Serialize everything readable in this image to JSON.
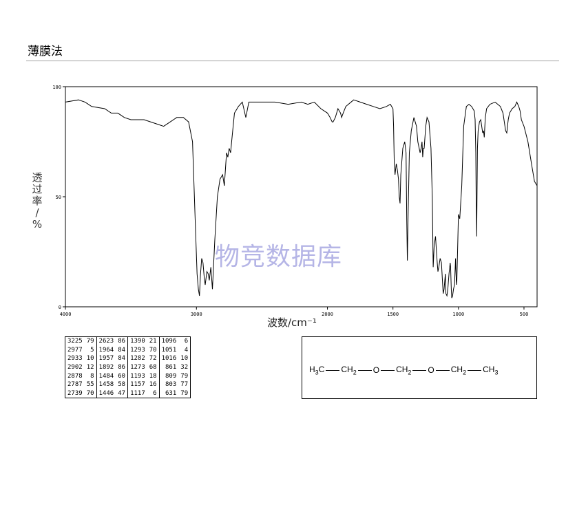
{
  "header": {
    "title": "薄膜法"
  },
  "axis": {
    "ylabel_chars": [
      "透",
      "过",
      "率",
      "/",
      "%"
    ],
    "xlabel": "波数/cm⁻¹"
  },
  "watermark": "物竞数据库",
  "chart_data": {
    "type": "line",
    "title": "",
    "xlabel": "波数/cm-1",
    "ylabel": "透过率/%",
    "xlim": [
      4000,
      400
    ],
    "ylim": [
      0,
      100
    ],
    "x_ticks": [
      4000,
      3000,
      2000,
      1500,
      1000,
      500
    ],
    "y_ticks": [
      0,
      50,
      100
    ],
    "grid": false,
    "series": [
      {
        "x": [
          4000,
          3900,
          3850,
          3800,
          3700,
          3650,
          3600,
          3550,
          3500,
          3400,
          3300,
          3250,
          3200,
          3150,
          3100,
          3060,
          3030,
          3010,
          2995,
          2985,
          2977,
          2970,
          2960,
          2950,
          2940,
          2933,
          2920,
          2910,
          2902,
          2890,
          2878,
          2860,
          2840,
          2820,
          2800,
          2787,
          2770,
          2760,
          2750,
          2739,
          2730,
          2720,
          2710,
          2700,
          2680,
          2650,
          2623,
          2600,
          2500,
          2400,
          2300,
          2200,
          2150,
          2100,
          2050,
          2000,
          1980,
          1964,
          1957,
          1940,
          1920,
          1900,
          1892,
          1880,
          1860,
          1800,
          1750,
          1700,
          1650,
          1600,
          1550,
          1520,
          1500,
          1495,
          1490,
          1484,
          1475,
          1466,
          1458,
          1452,
          1446,
          1440,
          1425,
          1410,
          1400,
          1395,
          1390,
          1385,
          1375,
          1360,
          1340,
          1320,
          1310,
          1300,
          1293,
          1285,
          1278,
          1273,
          1268,
          1262,
          1250,
          1240,
          1225,
          1210,
          1200,
          1193,
          1185,
          1175,
          1168,
          1162,
          1157,
          1150,
          1140,
          1130,
          1117,
          1110,
          1100,
          1096,
          1088,
          1080,
          1072,
          1063,
          1060,
          1058,
          1055,
          1051,
          1045,
          1038,
          1030,
          1022,
          1016,
          1012,
          1005,
          1000,
          990,
          975,
          960,
          940,
          920,
          900,
          890,
          880,
          873,
          868,
          865,
          861,
          858,
          855,
          850,
          840,
          830,
          815,
          809,
          803,
          795,
          785,
          760,
          720,
          700,
          680,
          660,
          650,
          640,
          631,
          620,
          610,
          590,
          570,
          555,
          540,
          530,
          520,
          500,
          470,
          440,
          420,
          400
        ],
        "y": [
          93,
          94,
          93,
          91,
          90,
          88,
          88,
          86,
          85,
          85,
          83,
          82,
          84,
          86,
          86,
          84,
          75,
          40,
          15,
          8,
          5,
          14,
          22,
          20,
          13,
          10,
          16,
          15,
          12,
          18,
          8,
          30,
          50,
          58,
          60,
          55,
          70,
          68,
          72,
          70,
          76,
          82,
          88,
          89,
          91,
          93,
          86,
          93,
          93,
          93,
          92,
          93,
          92,
          93,
          90,
          88,
          86,
          84,
          84,
          86,
          90,
          88,
          86,
          88,
          91,
          94,
          93,
          92,
          91,
          90,
          91,
          92,
          90,
          82,
          65,
          60,
          65,
          62,
          58,
          50,
          47,
          60,
          72,
          75,
          70,
          40,
          21,
          40,
          70,
          80,
          86,
          82,
          75,
          72,
          70,
          72,
          75,
          68,
          72,
          72,
          82,
          86,
          84,
          72,
          50,
          18,
          28,
          32,
          25,
          20,
          16,
          18,
          22,
          20,
          6,
          8,
          15,
          6,
          5,
          9,
          15,
          20,
          18,
          14,
          8,
          4,
          5,
          8,
          10,
          22,
          10,
          12,
          30,
          42,
          40,
          55,
          82,
          91,
          92,
          91,
          90,
          89,
          85,
          70,
          50,
          32,
          55,
          72,
          80,
          84,
          85,
          79,
          80,
          77,
          86,
          90,
          92,
          93,
          92,
          91,
          88,
          84,
          80,
          79,
          85,
          88,
          90,
          91,
          93,
          91,
          89,
          85,
          82,
          75,
          64,
          57,
          55
        ],
        "name": ""
      }
    ]
  },
  "peak_table": {
    "rows": [
      [
        "3225",
        "79",
        "2623",
        "86",
        "1390",
        "21",
        "1096",
        "6"
      ],
      [
        "2977",
        "5",
        "1964",
        "84",
        "1293",
        "70",
        "1051",
        "4"
      ],
      [
        "2933",
        "10",
        "1957",
        "84",
        "1282",
        "72",
        "1016",
        "10"
      ],
      [
        "2902",
        "12",
        "1892",
        "86",
        "1273",
        "68",
        "861",
        "32"
      ],
      [
        "2878",
        "8",
        "1484",
        "60",
        "1193",
        "18",
        "809",
        "79"
      ],
      [
        "2787",
        "55",
        "1458",
        "58",
        "1157",
        "16",
        "803",
        "77"
      ],
      [
        "2739",
        "70",
        "1446",
        "47",
        "1117",
        "6",
        "631",
        "79"
      ]
    ]
  },
  "structure": {
    "parts": [
      "H",
      "3",
      "C",
      "CH",
      "2",
      "O",
      "CH",
      "2",
      "O",
      "CH",
      "2",
      "CH",
      "3"
    ]
  }
}
